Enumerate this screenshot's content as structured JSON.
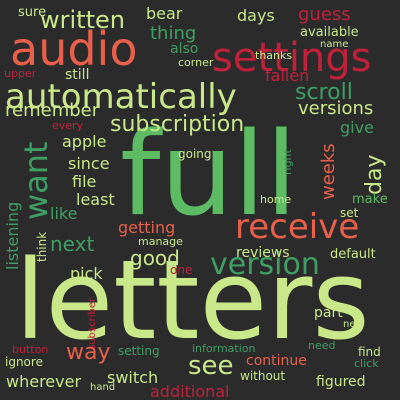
{
  "palette": {
    "background": "#2b2b2b",
    "light_green": "#c9e88a",
    "green": "#5dbb63",
    "sea_green": "#3f9e64",
    "dark_green": "#2e7d4f",
    "salmon": "#e8604b",
    "coral": "#f28b6b",
    "red": "#c0203a",
    "dark_red": "#9c1c2c"
  },
  "words": [
    {
      "text": "full",
      "color": "#5dbb63"
    },
    {
      "text": "letters",
      "color": "#c9e88a"
    },
    {
      "text": "audio",
      "color": "#e8604b"
    },
    {
      "text": "settings",
      "color": "#c0203a"
    },
    {
      "text": "automatically",
      "color": "#c9e88a"
    },
    {
      "text": "subscription",
      "color": "#c9e88a"
    },
    {
      "text": "receive",
      "color": "#e8604b"
    },
    {
      "text": "version",
      "color": "#3f9e64"
    },
    {
      "text": "want",
      "color": "#3f9e64"
    },
    {
      "text": "written",
      "color": "#c9e88a"
    },
    {
      "text": "scroll",
      "color": "#3f9e64"
    },
    {
      "text": "remember",
      "color": "#c9e88a"
    },
    {
      "text": "versions",
      "color": "#c9e88a"
    },
    {
      "text": "fallen",
      "color": "#c0203a"
    },
    {
      "text": "guess",
      "color": "#c0203a"
    },
    {
      "text": "days",
      "color": "#c9e88a"
    },
    {
      "text": "bear",
      "color": "#c9e88a"
    },
    {
      "text": "sure",
      "color": "#c9e88a"
    },
    {
      "text": "thing",
      "color": "#3f9e64"
    },
    {
      "text": "also",
      "color": "#3f9e64"
    },
    {
      "text": "available",
      "color": "#c9e88a"
    },
    {
      "text": "thanks",
      "color": "#c9e88a"
    },
    {
      "text": "name",
      "color": "#c9e88a"
    },
    {
      "text": "corner",
      "color": "#c9e88a"
    },
    {
      "text": "still",
      "color": "#c9e88a"
    },
    {
      "text": "upper",
      "color": "#c0203a"
    },
    {
      "text": "every",
      "color": "#c0203a"
    },
    {
      "text": "give",
      "color": "#3f9e64"
    },
    {
      "text": "apple",
      "color": "#c9e88a"
    },
    {
      "text": "since",
      "color": "#c9e88a"
    },
    {
      "text": "file",
      "color": "#c9e88a"
    },
    {
      "text": "least",
      "color": "#c9e88a"
    },
    {
      "text": "like",
      "color": "#3f9e64"
    },
    {
      "text": "next",
      "color": "#3f9e64"
    },
    {
      "text": "going",
      "color": "#c9e88a"
    },
    {
      "text": "weeks",
      "color": "#e8604b"
    },
    {
      "text": "day",
      "color": "#c9e88a"
    },
    {
      "text": "right",
      "color": "#3f9e64"
    },
    {
      "text": "make",
      "color": "#5dbb63"
    },
    {
      "text": "set",
      "color": "#c9e88a"
    },
    {
      "text": "home",
      "color": "#c9e88a"
    },
    {
      "text": "listening",
      "color": "#3f9e64"
    },
    {
      "text": "think",
      "color": "#c9e88a"
    },
    {
      "text": "getting",
      "color": "#e8604b"
    },
    {
      "text": "manage",
      "color": "#c9e88a"
    },
    {
      "text": "good",
      "color": "#c9e88a"
    },
    {
      "text": "reviews",
      "color": "#c9e88a"
    },
    {
      "text": "default",
      "color": "#c9e88a"
    },
    {
      "text": "pick",
      "color": "#c9e88a"
    },
    {
      "text": "one",
      "color": "#c0203a"
    },
    {
      "text": "subscriber",
      "color": "#c0203a"
    },
    {
      "text": "part",
      "color": "#c9e88a"
    },
    {
      "text": "new",
      "color": "#c9e88a"
    },
    {
      "text": "way",
      "color": "#e8604b"
    },
    {
      "text": "button",
      "color": "#c0203a"
    },
    {
      "text": "ignore",
      "color": "#c9e88a"
    },
    {
      "text": "setting",
      "color": "#3f9e64"
    },
    {
      "text": "information",
      "color": "#3f9e64"
    },
    {
      "text": "see",
      "color": "#c9e88a"
    },
    {
      "text": "need",
      "color": "#3f9e64"
    },
    {
      "text": "find",
      "color": "#c9e88a"
    },
    {
      "text": "click",
      "color": "#3f9e64"
    },
    {
      "text": "continue",
      "color": "#e8604b"
    },
    {
      "text": "wherever",
      "color": "#c9e88a"
    },
    {
      "text": "switch",
      "color": "#c9e88a"
    },
    {
      "text": "without",
      "color": "#c9e88a"
    },
    {
      "text": "figured",
      "color": "#c9e88a"
    },
    {
      "text": "hand",
      "color": "#c9e88a"
    },
    {
      "text": "additional",
      "color": "#c0203a"
    }
  ]
}
